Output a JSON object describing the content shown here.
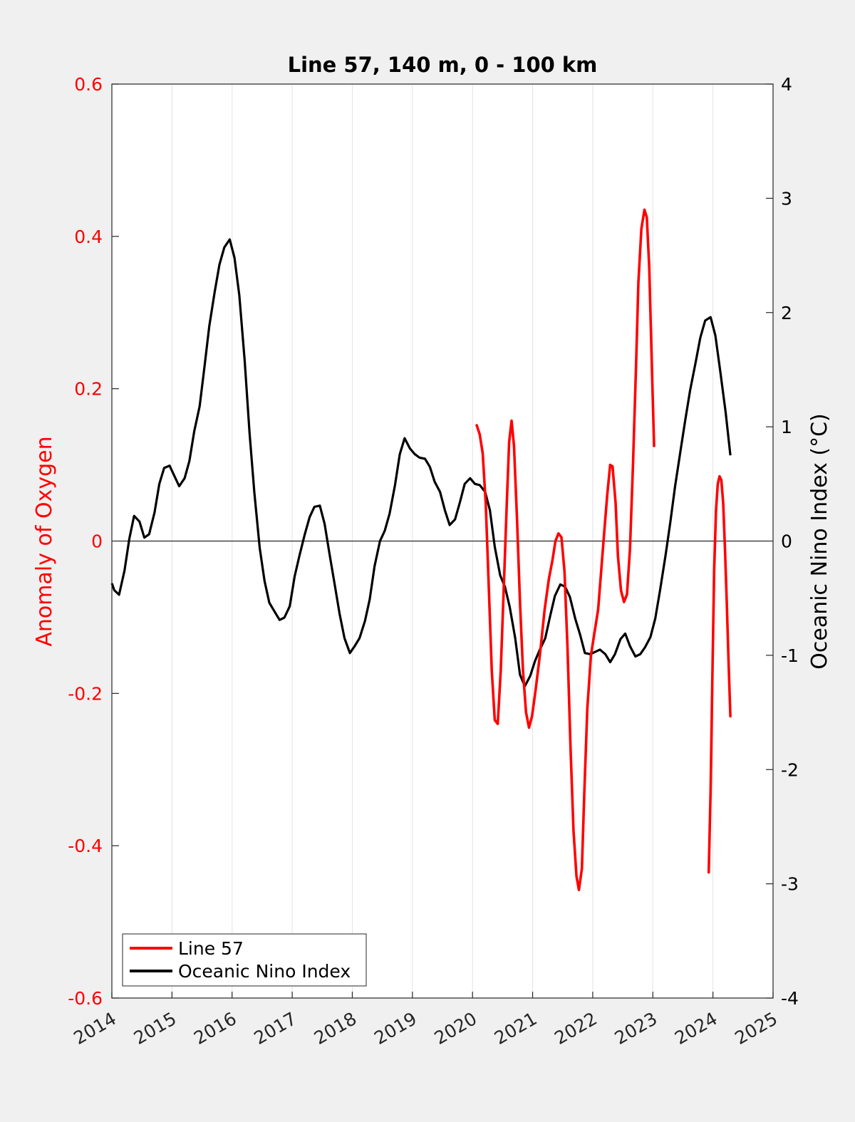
{
  "chart_data": {
    "type": "line",
    "title": "Line 57, 140 m, 0 - 100 km",
    "xlabel": "",
    "ylabel_left": "Anomaly of Oxygen",
    "ylabel_right": "Oceanic Nino Index (°C)",
    "xlim": [
      2014,
      2025
    ],
    "ylim_left": [
      -0.6,
      0.6
    ],
    "ylim_right": [
      -4,
      4
    ],
    "x_ticks": [
      "2014",
      "2015",
      "2016",
      "2017",
      "2018",
      "2019",
      "2020",
      "2021",
      "2022",
      "2023",
      "2024",
      "2025"
    ],
    "y_left_ticks": [
      "0.6",
      "0.4",
      "0.2",
      "0",
      "-0.2",
      "-0.4",
      "-0.6"
    ],
    "y_right_ticks": [
      "4",
      "3",
      "2",
      "1",
      "0",
      "-1",
      "-2",
      "-3",
      "-4"
    ],
    "grid": "vertical",
    "zero_line": true,
    "legend_position": "bottom-left",
    "colors": {
      "line57": "#ff0000",
      "oni": "#000000",
      "left_axis": "#ff0000",
      "right_axis": "#000000"
    },
    "series": [
      {
        "name": "Line 57",
        "axis": "left",
        "segments": [
          [
            [
              2020.07,
              0.152
            ],
            [
              2020.12,
              0.14
            ],
            [
              2020.17,
              0.115
            ],
            [
              2020.22,
              0.05
            ],
            [
              2020.27,
              -0.06
            ],
            [
              2020.32,
              -0.17
            ],
            [
              2020.37,
              -0.235
            ],
            [
              2020.42,
              -0.24
            ],
            [
              2020.47,
              -0.17
            ],
            [
              2020.52,
              -0.06
            ],
            [
              2020.57,
              0.05
            ],
            [
              2020.61,
              0.13
            ],
            [
              2020.65,
              0.158
            ],
            [
              2020.69,
              0.125
            ],
            [
              2020.74,
              0.03
            ],
            [
              2020.79,
              -0.08
            ],
            [
              2020.84,
              -0.17
            ],
            [
              2020.89,
              -0.225
            ],
            [
              2020.94,
              -0.245
            ],
            [
              2020.99,
              -0.23
            ],
            [
              2021.05,
              -0.195
            ],
            [
              2021.12,
              -0.15
            ],
            [
              2021.2,
              -0.09
            ],
            [
              2021.27,
              -0.05
            ],
            [
              2021.33,
              -0.025
            ],
            [
              2021.38,
              0.0
            ],
            [
              2021.43,
              0.01
            ],
            [
              2021.48,
              0.005
            ],
            [
              2021.53,
              -0.04
            ],
            [
              2021.58,
              -0.14
            ],
            [
              2021.63,
              -0.27
            ],
            [
              2021.68,
              -0.38
            ],
            [
              2021.73,
              -0.44
            ],
            [
              2021.77,
              -0.458
            ],
            [
              2021.82,
              -0.43
            ],
            [
              2021.86,
              -0.33
            ],
            [
              2021.91,
              -0.22
            ],
            [
              2021.97,
              -0.15
            ],
            [
              2022.03,
              -0.12
            ],
            [
              2022.09,
              -0.09
            ],
            [
              2022.14,
              -0.04
            ],
            [
              2022.19,
              0.01
            ],
            [
              2022.24,
              0.06
            ],
            [
              2022.29,
              0.1
            ],
            [
              2022.33,
              0.098
            ],
            [
              2022.38,
              0.05
            ],
            [
              2022.42,
              -0.02
            ],
            [
              2022.47,
              -0.065
            ],
            [
              2022.52,
              -0.08
            ],
            [
              2022.57,
              -0.07
            ],
            [
              2022.62,
              -0.01
            ],
            [
              2022.67,
              0.1
            ],
            [
              2022.72,
              0.23
            ],
            [
              2022.76,
              0.34
            ],
            [
              2022.81,
              0.41
            ],
            [
              2022.86,
              0.435
            ],
            [
              2022.9,
              0.425
            ],
            [
              2022.94,
              0.36
            ],
            [
              2022.98,
              0.24
            ],
            [
              2023.02,
              0.125
            ]
          ],
          [
            [
              2023.93,
              -0.435
            ],
            [
              2023.96,
              -0.33
            ],
            [
              2023.99,
              -0.18
            ],
            [
              2024.02,
              -0.04
            ],
            [
              2024.05,
              0.04
            ],
            [
              2024.08,
              0.075
            ],
            [
              2024.11,
              0.085
            ],
            [
              2024.14,
              0.08
            ],
            [
              2024.17,
              0.05
            ],
            [
              2024.2,
              -0.01
            ],
            [
              2024.23,
              -0.08
            ],
            [
              2024.26,
              -0.16
            ],
            [
              2024.29,
              -0.23
            ]
          ]
        ]
      },
      {
        "name": "Oceanic Nino Index",
        "axis": "right",
        "points": [
          [
            2014.0,
            -0.37
          ],
          [
            2014.04,
            -0.43
          ],
          [
            2014.12,
            -0.47
          ],
          [
            2014.21,
            -0.26
          ],
          [
            2014.29,
            0.02
          ],
          [
            2014.37,
            0.22
          ],
          [
            2014.46,
            0.17
          ],
          [
            2014.54,
            0.03
          ],
          [
            2014.62,
            0.06
          ],
          [
            2014.71,
            0.25
          ],
          [
            2014.79,
            0.5
          ],
          [
            2014.87,
            0.64
          ],
          [
            2014.96,
            0.66
          ],
          [
            2015.04,
            0.57
          ],
          [
            2015.12,
            0.48
          ],
          [
            2015.21,
            0.55
          ],
          [
            2015.29,
            0.7
          ],
          [
            2015.37,
            0.96
          ],
          [
            2015.46,
            1.18
          ],
          [
            2015.54,
            1.52
          ],
          [
            2015.62,
            1.88
          ],
          [
            2015.71,
            2.18
          ],
          [
            2015.79,
            2.42
          ],
          [
            2015.87,
            2.57
          ],
          [
            2015.96,
            2.64
          ],
          [
            2016.04,
            2.48
          ],
          [
            2016.12,
            2.15
          ],
          [
            2016.21,
            1.58
          ],
          [
            2016.29,
            0.95
          ],
          [
            2016.37,
            0.43
          ],
          [
            2016.46,
            -0.06
          ],
          [
            2016.54,
            -0.35
          ],
          [
            2016.62,
            -0.54
          ],
          [
            2016.71,
            -0.62
          ],
          [
            2016.79,
            -0.69
          ],
          [
            2016.87,
            -0.67
          ],
          [
            2016.96,
            -0.57
          ],
          [
            2017.04,
            -0.31
          ],
          [
            2017.12,
            -0.13
          ],
          [
            2017.21,
            0.06
          ],
          [
            2017.29,
            0.21
          ],
          [
            2017.37,
            0.3
          ],
          [
            2017.46,
            0.31
          ],
          [
            2017.54,
            0.15
          ],
          [
            2017.62,
            -0.11
          ],
          [
            2017.71,
            -0.39
          ],
          [
            2017.79,
            -0.64
          ],
          [
            2017.87,
            -0.85
          ],
          [
            2017.96,
            -0.98
          ],
          [
            2018.04,
            -0.92
          ],
          [
            2018.12,
            -0.85
          ],
          [
            2018.21,
            -0.7
          ],
          [
            2018.29,
            -0.51
          ],
          [
            2018.37,
            -0.22
          ],
          [
            2018.46,
            0.0
          ],
          [
            2018.54,
            0.09
          ],
          [
            2018.62,
            0.24
          ],
          [
            2018.71,
            0.49
          ],
          [
            2018.79,
            0.76
          ],
          [
            2018.87,
            0.9
          ],
          [
            2018.96,
            0.81
          ],
          [
            2019.04,
            0.76
          ],
          [
            2019.12,
            0.73
          ],
          [
            2019.21,
            0.72
          ],
          [
            2019.29,
            0.65
          ],
          [
            2019.37,
            0.52
          ],
          [
            2019.46,
            0.43
          ],
          [
            2019.54,
            0.27
          ],
          [
            2019.62,
            0.14
          ],
          [
            2019.71,
            0.19
          ],
          [
            2019.79,
            0.34
          ],
          [
            2019.87,
            0.5
          ],
          [
            2019.96,
            0.55
          ],
          [
            2020.04,
            0.5
          ],
          [
            2020.12,
            0.49
          ],
          [
            2020.21,
            0.43
          ],
          [
            2020.29,
            0.27
          ],
          [
            2020.37,
            -0.05
          ],
          [
            2020.46,
            -0.3
          ],
          [
            2020.54,
            -0.4
          ],
          [
            2020.62,
            -0.58
          ],
          [
            2020.71,
            -0.85
          ],
          [
            2020.79,
            -1.17
          ],
          [
            2020.87,
            -1.27
          ],
          [
            2020.96,
            -1.18
          ],
          [
            2021.04,
            -1.05
          ],
          [
            2021.12,
            -0.95
          ],
          [
            2021.21,
            -0.85
          ],
          [
            2021.29,
            -0.66
          ],
          [
            2021.37,
            -0.48
          ],
          [
            2021.46,
            -0.38
          ],
          [
            2021.54,
            -0.4
          ],
          [
            2021.62,
            -0.49
          ],
          [
            2021.71,
            -0.68
          ],
          [
            2021.79,
            -0.82
          ],
          [
            2021.87,
            -0.98
          ],
          [
            2021.96,
            -0.99
          ],
          [
            2022.04,
            -0.97
          ],
          [
            2022.12,
            -0.95
          ],
          [
            2022.21,
            -0.99
          ],
          [
            2022.29,
            -1.06
          ],
          [
            2022.37,
            -0.99
          ],
          [
            2022.46,
            -0.86
          ],
          [
            2022.54,
            -0.81
          ],
          [
            2022.62,
            -0.92
          ],
          [
            2022.71,
            -1.01
          ],
          [
            2022.79,
            -0.99
          ],
          [
            2022.87,
            -0.93
          ],
          [
            2022.96,
            -0.84
          ],
          [
            2023.04,
            -0.68
          ],
          [
            2023.12,
            -0.43
          ],
          [
            2023.21,
            -0.13
          ],
          [
            2023.29,
            0.16
          ],
          [
            2023.37,
            0.48
          ],
          [
            2023.46,
            0.79
          ],
          [
            2023.54,
            1.06
          ],
          [
            2023.62,
            1.32
          ],
          [
            2023.71,
            1.56
          ],
          [
            2023.79,
            1.78
          ],
          [
            2023.87,
            1.93
          ],
          [
            2023.96,
            1.96
          ],
          [
            2024.04,
            1.8
          ],
          [
            2024.12,
            1.49
          ],
          [
            2024.21,
            1.13
          ],
          [
            2024.29,
            0.75
          ]
        ]
      }
    ]
  }
}
